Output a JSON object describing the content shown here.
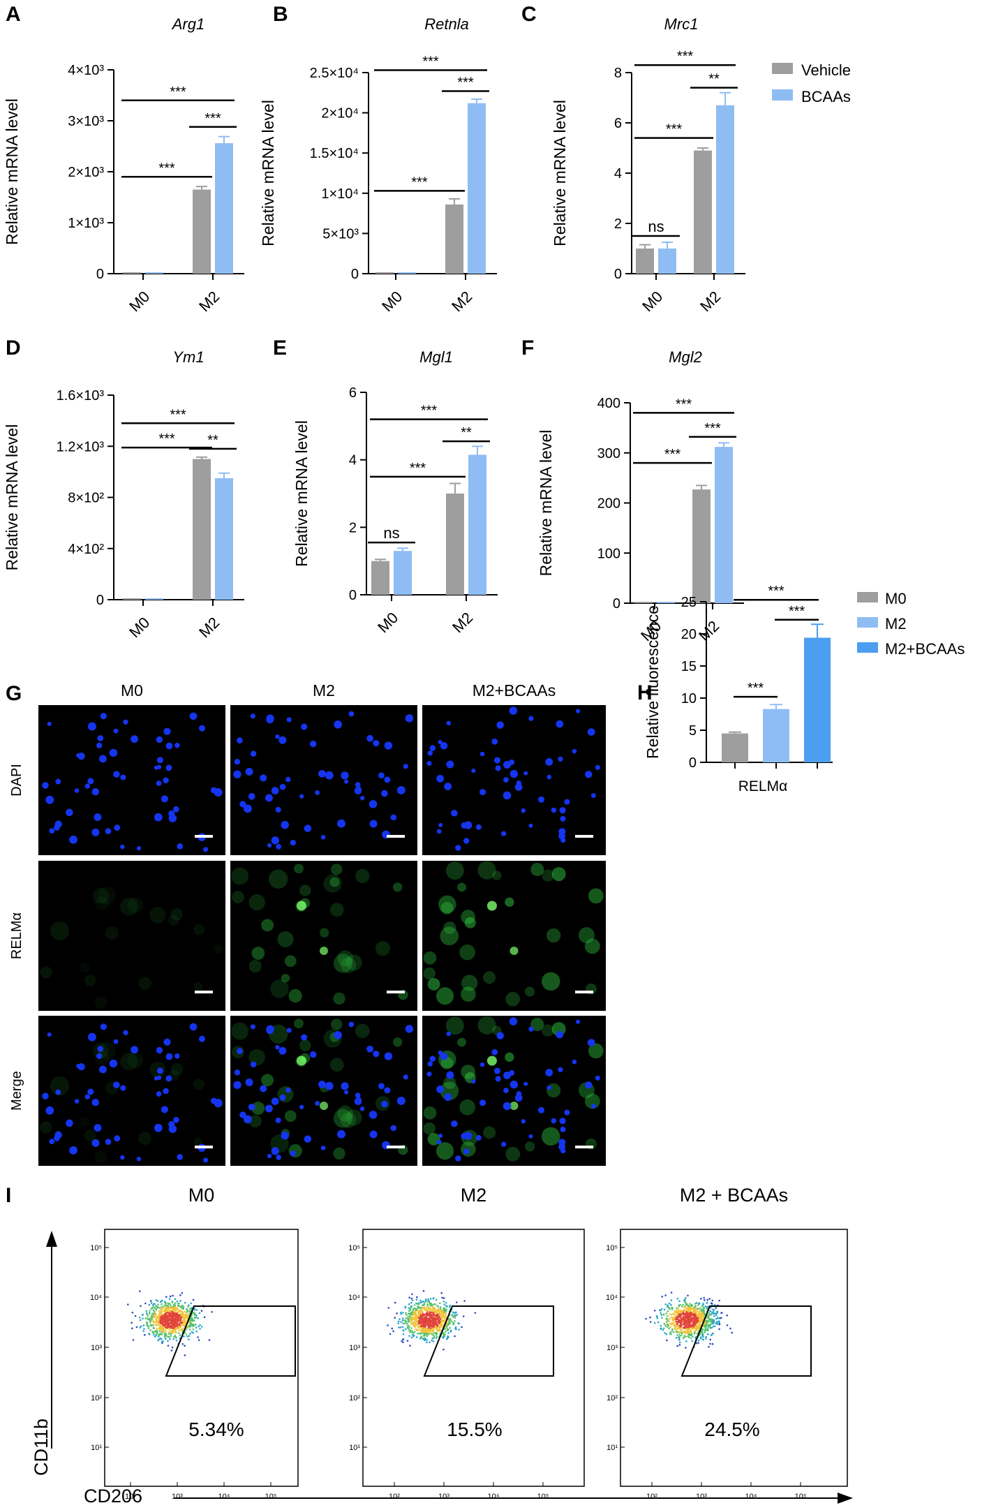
{
  "colors": {
    "vehicle": "#9e9e9e",
    "bcaas": "#8fbdf3",
    "m0": "#9e9e9e",
    "m2": "#8fbdf3",
    "m2_bcaas": "#4b9ef0",
    "dapi": "#1535f0",
    "relm": "#2fc33f",
    "background": "#000000"
  },
  "legend_top": [
    "Vehicle",
    "BCAAs"
  ],
  "panels": {
    "G": {
      "letter": "G",
      "columns": [
        "M0",
        "M2",
        "M2+BCAAs"
      ],
      "rows": [
        "DAPI",
        "RELMα",
        "Merge"
      ],
      "scale_bar": "shown"
    },
    "I": {
      "letter": "I",
      "columns": [
        "M0",
        "M2",
        "M2 + BCAAs"
      ],
      "percentages": [
        "5.34%",
        "15.5%",
        "24.5%"
      ],
      "ylabel": "CD11b",
      "xlabel": "CD206",
      "yticks": [
        "10⁵",
        "10⁴",
        "10³",
        "10²",
        "10¹"
      ],
      "xticks": [
        "10²",
        "10³",
        "10⁴",
        "10⁵"
      ]
    }
  },
  "chart_data": [
    {
      "id": "A",
      "letter": "A",
      "type": "bar",
      "title": "Arg1",
      "title_italic": true,
      "categories": [
        "M0",
        "M2"
      ],
      "series": [
        {
          "name": "Vehicle",
          "values": [
            1,
            1650
          ],
          "errors": [
            0,
            60
          ]
        },
        {
          "name": "BCAAs",
          "values": [
            1,
            2560
          ],
          "errors": [
            0,
            130
          ]
        }
      ],
      "ylabel": "Relative mRNA level",
      "ylim": [
        0,
        4000
      ],
      "yticks": [
        0,
        1000,
        2000,
        3000,
        4000
      ],
      "yticklabels": [
        "0",
        "1×10³",
        "2×10³",
        "3×10³",
        "4×10³"
      ],
      "sig": [
        {
          "from": [
            0,
            0
          ],
          "to": [
            1,
            0
          ],
          "label": "***",
          "at": 1900
        },
        {
          "from": [
            0,
            0
          ],
          "to": [
            1,
            1
          ],
          "label": "***",
          "at": 3400
        },
        {
          "from": [
            1,
            0
          ],
          "to": [
            1,
            1
          ],
          "label": "***",
          "at": 2880
        }
      ]
    },
    {
      "id": "B",
      "letter": "B",
      "type": "bar",
      "title": "Retnla",
      "title_italic": true,
      "categories": [
        "M0",
        "M2"
      ],
      "series": [
        {
          "name": "Vehicle",
          "values": [
            1,
            8600
          ],
          "errors": [
            0,
            700
          ]
        },
        {
          "name": "BCAAs",
          "values": [
            1,
            21200
          ],
          "errors": [
            0,
            500
          ]
        }
      ],
      "ylabel": "Relative mRNA level",
      "ylim": [
        0,
        25000
      ],
      "yticks": [
        0,
        5000,
        10000,
        15000,
        20000,
        25000
      ],
      "yticklabels": [
        "0",
        "5×10³",
        "1×10⁴",
        "1.5×10⁴",
        "2×10⁴",
        "2.5×10⁴"
      ],
      "sig": [
        {
          "from": [
            0,
            0
          ],
          "to": [
            1,
            0
          ],
          "label": "***",
          "at": 10300
        },
        {
          "from": [
            0,
            0
          ],
          "to": [
            1,
            1
          ],
          "label": "***",
          "at": 25300
        },
        {
          "from": [
            1,
            0
          ],
          "to": [
            1,
            1
          ],
          "label": "***",
          "at": 22700
        }
      ]
    },
    {
      "id": "C",
      "letter": "C",
      "type": "bar",
      "title": "Mrc1",
      "title_italic": true,
      "categories": [
        "M0",
        "M2"
      ],
      "series": [
        {
          "name": "Vehicle",
          "values": [
            1.0,
            4.9
          ],
          "errors": [
            0.15,
            0.1
          ]
        },
        {
          "name": "BCAAs",
          "values": [
            1.0,
            6.7
          ],
          "errors": [
            0.25,
            0.5
          ]
        }
      ],
      "ylabel": "Relative mRNA level",
      "ylim": [
        0,
        8
      ],
      "yticks": [
        0,
        2,
        4,
        6,
        8
      ],
      "yticklabels": [
        "0",
        "2",
        "4",
        "6",
        "8"
      ],
      "sig": [
        {
          "from": [
            0,
            0
          ],
          "to": [
            0,
            1
          ],
          "label": "ns",
          "at": 1.5
        },
        {
          "from": [
            0,
            0
          ],
          "to": [
            1,
            0
          ],
          "label": "***",
          "at": 5.4
        },
        {
          "from": [
            0,
            0
          ],
          "to": [
            1,
            1
          ],
          "label": "***",
          "at": 8.3
        },
        {
          "from": [
            1,
            0
          ],
          "to": [
            1,
            1
          ],
          "label": "**",
          "at": 7.4
        }
      ]
    },
    {
      "id": "D",
      "letter": "D",
      "type": "bar",
      "title": "Ym1",
      "title_italic": true,
      "categories": [
        "M0",
        "M2"
      ],
      "series": [
        {
          "name": "Vehicle",
          "values": [
            1,
            1100
          ],
          "errors": [
            0,
            15
          ]
        },
        {
          "name": "BCAAs",
          "values": [
            1,
            950
          ],
          "errors": [
            0,
            40
          ]
        }
      ],
      "ylabel": "Relative mRNA level",
      "ylim": [
        0,
        1600
      ],
      "yticks": [
        0,
        400,
        800,
        1200,
        1600
      ],
      "yticklabels": [
        "0",
        "4×10²",
        "8×10²",
        "1.2×10³",
        "1.6×10³"
      ],
      "sig": [
        {
          "from": [
            0,
            0
          ],
          "to": [
            1,
            0
          ],
          "label": "***",
          "at": 1190
        },
        {
          "from": [
            0,
            0
          ],
          "to": [
            1,
            1
          ],
          "label": "***",
          "at": 1380
        },
        {
          "from": [
            1,
            0
          ],
          "to": [
            1,
            1
          ],
          "label": "**",
          "at": 1180
        }
      ]
    },
    {
      "id": "E",
      "letter": "E",
      "type": "bar",
      "title": "Mgl1",
      "title_italic": true,
      "categories": [
        "M0",
        "M2"
      ],
      "series": [
        {
          "name": "Vehicle",
          "values": [
            1.0,
            3.0
          ],
          "errors": [
            0.05,
            0.3
          ]
        },
        {
          "name": "BCAAs",
          "values": [
            1.3,
            4.15
          ],
          "errors": [
            0.08,
            0.25
          ]
        }
      ],
      "ylabel": "Relative mRNA level",
      "ylim": [
        0,
        6
      ],
      "yticks": [
        0,
        2,
        4,
        6
      ],
      "yticklabels": [
        "0",
        "2",
        "4",
        "6"
      ],
      "sig": [
        {
          "from": [
            0,
            0
          ],
          "to": [
            0,
            1
          ],
          "label": "ns",
          "at": 1.55
        },
        {
          "from": [
            0,
            0
          ],
          "to": [
            1,
            0
          ],
          "label": "***",
          "at": 3.5
        },
        {
          "from": [
            0,
            0
          ],
          "to": [
            1,
            1
          ],
          "label": "***",
          "at": 5.2
        },
        {
          "from": [
            1,
            0
          ],
          "to": [
            1,
            1
          ],
          "label": "**",
          "at": 4.55
        }
      ]
    },
    {
      "id": "F",
      "letter": "F",
      "type": "bar",
      "title": "Mgl2",
      "title_italic": true,
      "categories": [
        "M0",
        "M2"
      ],
      "series": [
        {
          "name": "Vehicle",
          "values": [
            1,
            227
          ],
          "errors": [
            0,
            8
          ]
        },
        {
          "name": "BCAAs",
          "values": [
            1,
            312
          ],
          "errors": [
            0,
            8
          ]
        }
      ],
      "ylabel": "Relative mRNA level",
      "ylim": [
        0,
        400
      ],
      "yticks": [
        0,
        100,
        200,
        300,
        400
      ],
      "yticklabels": [
        "0",
        "100",
        "200",
        "300",
        "400"
      ],
      "sig": [
        {
          "from": [
            0,
            0
          ],
          "to": [
            1,
            0
          ],
          "label": "***",
          "at": 280
        },
        {
          "from": [
            0,
            0
          ],
          "to": [
            1,
            1
          ],
          "label": "***",
          "at": 380
        },
        {
          "from": [
            1,
            0
          ],
          "to": [
            1,
            1
          ],
          "label": "***",
          "at": 332
        }
      ]
    },
    {
      "id": "H",
      "letter": "H",
      "type": "bar",
      "title": "RELMα",
      "title_italic": false,
      "categories": [
        "M0",
        "M2",
        "M2+BCAAs"
      ],
      "values": [
        4.5,
        8.3,
        19.4
      ],
      "errors": [
        0.2,
        0.7,
        2.1
      ],
      "ylabel": "Relative fluorescence",
      "ylim": [
        0,
        25
      ],
      "yticks": [
        0,
        5,
        10,
        15,
        20,
        25
      ],
      "yticklabels": [
        "0",
        "5",
        "10",
        "15",
        "20",
        "25"
      ],
      "legend": [
        "M0",
        "M2",
        "M2+BCAAs"
      ],
      "sig": [
        {
          "from": 0,
          "to": 1,
          "label": "***",
          "at": 10.2
        },
        {
          "from": 0,
          "to": 2,
          "label": "***",
          "at": 25.3
        },
        {
          "from": 1,
          "to": 2,
          "label": "***",
          "at": 22.2
        }
      ]
    }
  ]
}
